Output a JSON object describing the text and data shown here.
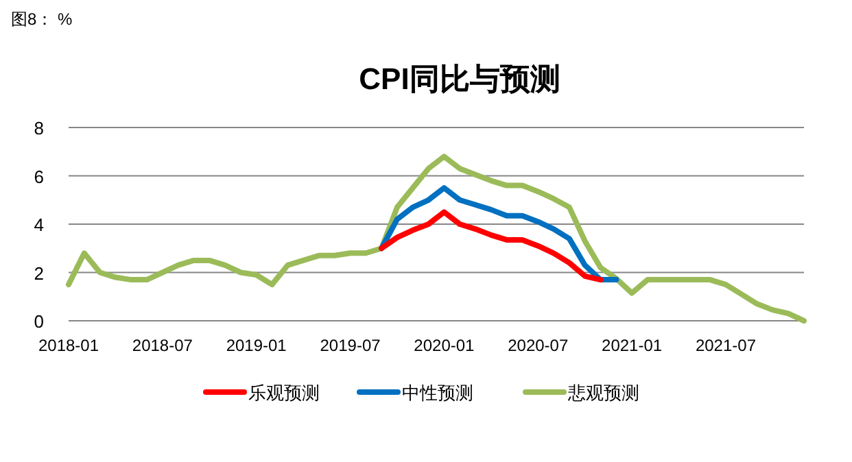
{
  "chart_data": {
    "type": "line",
    "title": "CPI同比与预测",
    "annotations": [
      "图8： %"
    ],
    "x": [
      "2018-01",
      "2018-02",
      "2018-03",
      "2018-04",
      "2018-05",
      "2018-06",
      "2018-07",
      "2018-08",
      "2018-09",
      "2018-10",
      "2018-11",
      "2018-12",
      "2019-01",
      "2019-02",
      "2019-03",
      "2019-04",
      "2019-05",
      "2019-06",
      "2019-07",
      "2019-08",
      "2019-09",
      "2019-10",
      "2019-11",
      "2019-12",
      "2020-01",
      "2020-02",
      "2020-03",
      "2020-04",
      "2020-05",
      "2020-06",
      "2020-07",
      "2020-08",
      "2020-09",
      "2020-10",
      "2020-11",
      "2020-12",
      "2021-01",
      "2021-02",
      "2021-03",
      "2021-04",
      "2021-05",
      "2021-06",
      "2021-07",
      "2021-08",
      "2021-09",
      "2021-10",
      "2021-11",
      "2021-12"
    ],
    "series": [
      {
        "name": "悲观预测",
        "color": "#9bbb59",
        "values": [
          1.5,
          2.8,
          2.0,
          1.8,
          1.7,
          1.7,
          2.0,
          2.3,
          2.5,
          2.5,
          2.3,
          2.0,
          1.9,
          1.5,
          2.3,
          2.5,
          2.7,
          2.7,
          2.8,
          2.8,
          3.0,
          4.7,
          5.5,
          6.3,
          6.8,
          6.3,
          6.05,
          5.8,
          5.6,
          5.6,
          5.35,
          5.05,
          4.7,
          3.3,
          2.2,
          1.75,
          1.15,
          1.7,
          1.7,
          1.7,
          1.7,
          1.7,
          1.5,
          1.1,
          0.7,
          0.45,
          0.3,
          0.0
        ]
      },
      {
        "name": "中性预测",
        "color": "#0070c0",
        "values": [
          null,
          null,
          null,
          null,
          null,
          null,
          null,
          null,
          null,
          null,
          null,
          null,
          null,
          null,
          null,
          null,
          null,
          null,
          null,
          null,
          3.0,
          4.2,
          4.7,
          5.0,
          5.5,
          5.0,
          4.8,
          4.6,
          4.35,
          4.35,
          4.1,
          3.8,
          3.4,
          2.3,
          1.7,
          1.7,
          null,
          null,
          null,
          null,
          null,
          null,
          null,
          null,
          null,
          null,
          null,
          null
        ]
      },
      {
        "name": "乐观预测",
        "color": "#ff0000",
        "values": [
          null,
          null,
          null,
          null,
          null,
          null,
          null,
          null,
          null,
          null,
          null,
          null,
          null,
          null,
          null,
          null,
          null,
          null,
          null,
          null,
          3.0,
          3.45,
          3.75,
          4.0,
          4.5,
          4.0,
          3.8,
          3.55,
          3.35,
          3.35,
          3.1,
          2.8,
          2.4,
          1.85,
          1.7,
          null,
          null,
          null,
          null,
          null,
          null,
          null,
          null,
          null,
          null,
          null,
          null,
          null
        ]
      }
    ],
    "xlim": [
      "2018-01",
      "2021-12"
    ],
    "xticks": [
      "2018-01",
      "2018-07",
      "2019-01",
      "2019-07",
      "2020-01",
      "2020-07",
      "2021-01",
      "2021-07"
    ],
    "ylim": [
      0,
      8
    ],
    "yticks": [
      0,
      2,
      4,
      6,
      8
    ],
    "grid": "y",
    "legend": "bottom"
  }
}
